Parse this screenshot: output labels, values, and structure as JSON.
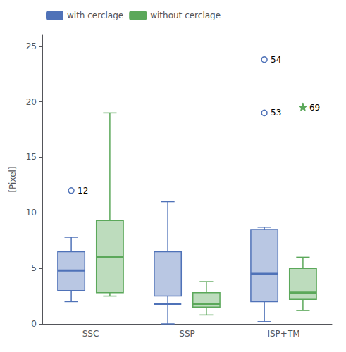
{
  "chart_data": {
    "type": "boxplot",
    "ylabel": "[Pixel]",
    "categories": [
      "SSC",
      "SSP",
      "ISP+TM"
    ],
    "ylim": [
      0,
      26
    ],
    "yticks": [
      0,
      5,
      10,
      15,
      20,
      25
    ],
    "legend": "upper left",
    "series": [
      {
        "name": "with cerclage",
        "color": "#4F72B8",
        "values": [
          {
            "whislo": 2.0,
            "q1": 3.0,
            "median": 4.8,
            "q3": 6.5,
            "whishi": 7.8
          },
          {
            "whislo": 0.0,
            "q1": 2.5,
            "median": 1.8,
            "q3": 6.5,
            "whishi": 11.0
          },
          {
            "whislo": 0.2,
            "q1": 2.0,
            "median": 4.5,
            "q3": 8.5,
            "whishi": 8.7
          }
        ]
      },
      {
        "name": "without cerclage",
        "color": "#5BA85A",
        "values": [
          {
            "whislo": 2.5,
            "q1": 2.8,
            "median": 6.0,
            "q3": 9.3,
            "whishi": 19.0
          },
          {
            "whislo": 0.8,
            "q1": 1.5,
            "median": 1.8,
            "q3": 2.8,
            "whishi": 3.8
          },
          {
            "whislo": 1.2,
            "q1": 2.2,
            "median": 2.8,
            "q3": 5.0,
            "whishi": 6.0
          }
        ]
      }
    ],
    "annotations": [
      {
        "text": "12",
        "category": "SSC",
        "series": "with cerclage",
        "value": 12.0,
        "marker": "circle"
      },
      {
        "text": "53",
        "category": "ISP+TM",
        "series": "with cerclage",
        "value": 19.0,
        "marker": "circle"
      },
      {
        "text": "54",
        "category": "ISP+TM",
        "series": "with cerclage",
        "value": 23.8,
        "marker": "circle"
      },
      {
        "text": "69",
        "category": "ISP+TM",
        "series": "without cerclage",
        "value": 19.5,
        "marker": "star"
      }
    ]
  }
}
